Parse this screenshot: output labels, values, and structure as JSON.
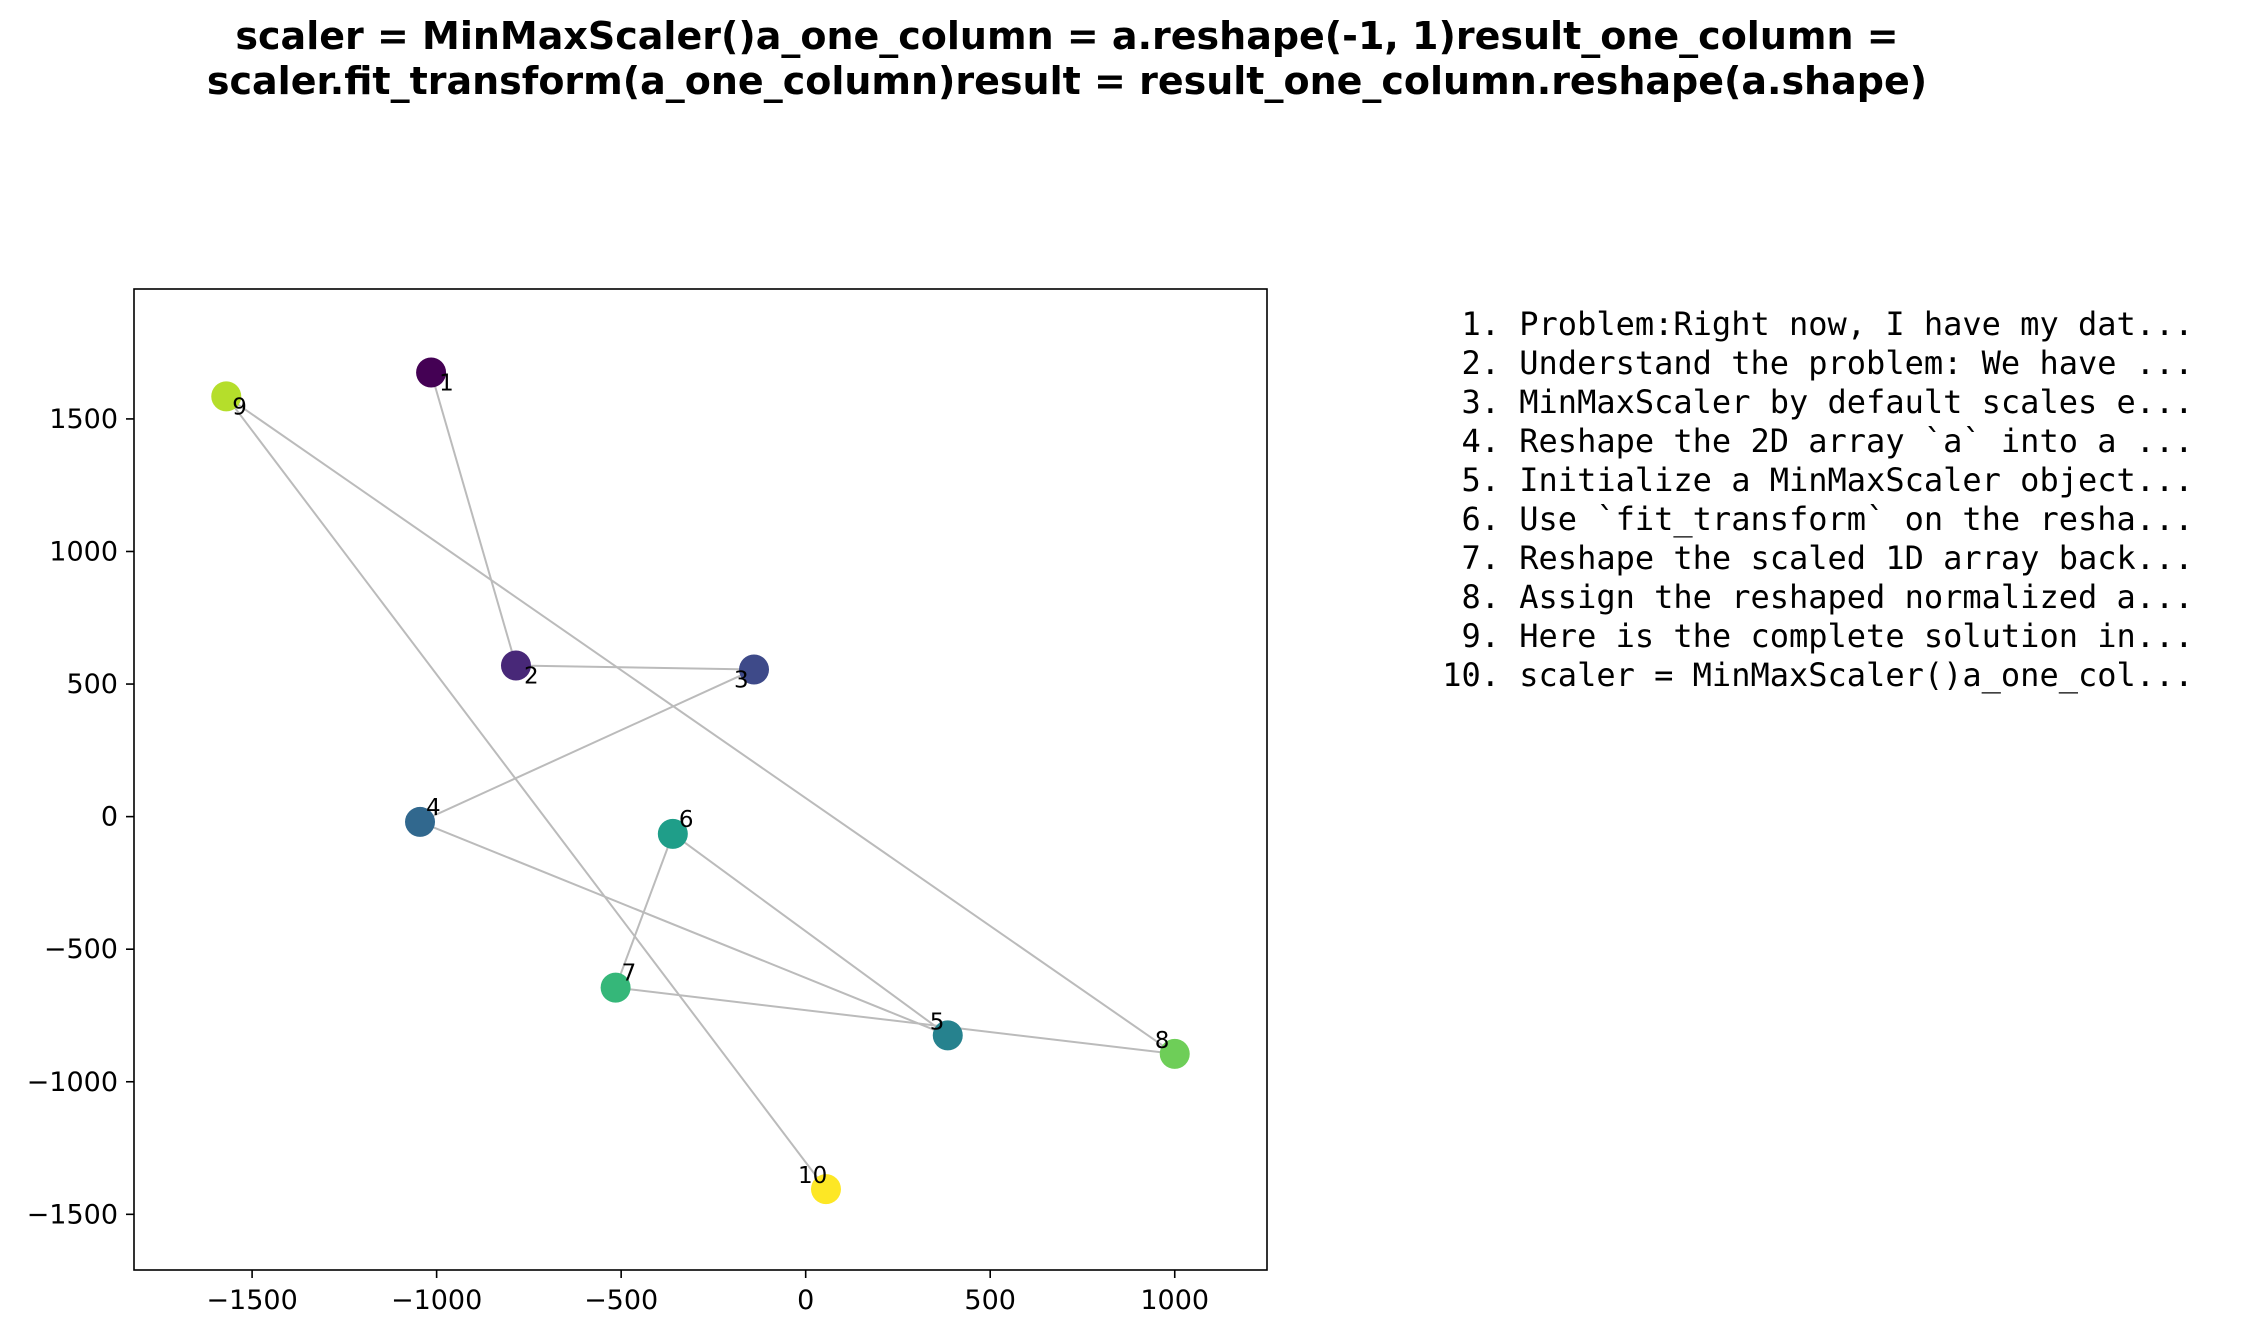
{
  "chart_data": {
    "type": "scatter",
    "title": "scaler = MinMaxScaler()a_one_column = a.reshape(-1, 1)result_one_column =\nscaler.fit_transform(a_one_column)result = result_one_column.reshape(a.shape)",
    "xlabel": "",
    "ylabel": "",
    "xlim": [
      -1820,
      1250
    ],
    "ylim": [
      -1710,
      1990
    ],
    "xticks": [
      -1500,
      -1000,
      -500,
      0,
      500,
      1000
    ],
    "yticks": [
      -1500,
      -1000,
      -500,
      0,
      500,
      1000,
      1500
    ],
    "xtick_labels": [
      "−1500",
      "−1000",
      "−500",
      "0",
      "500",
      "1000"
    ],
    "ytick_labels": [
      "−1500",
      "−1000",
      "−500",
      "0",
      "500",
      "1000",
      "1500"
    ],
    "grid": false,
    "points": [
      {
        "label": "1",
        "x": -1015,
        "y": 1675,
        "color": "#440154"
      },
      {
        "label": "2",
        "x": -785,
        "y": 570,
        "color": "#482878"
      },
      {
        "label": "3",
        "x": -140,
        "y": 555,
        "color": "#3e4a89"
      },
      {
        "label": "4",
        "x": -1045,
        "y": -20,
        "color": "#31688e"
      },
      {
        "label": "5",
        "x": 385,
        "y": -825,
        "color": "#26828e"
      },
      {
        "label": "6",
        "x": -360,
        "y": -65,
        "color": "#1f9e89"
      },
      {
        "label": "7",
        "x": -515,
        "y": -645,
        "color": "#35b779"
      },
      {
        "label": "8",
        "x": 1000,
        "y": -895,
        "color": "#6ece58"
      },
      {
        "label": "9",
        "x": -1570,
        "y": 1585,
        "color": "#b5de2b"
      },
      {
        "label": "10",
        "x": 55,
        "y": -1405,
        "color": "#fde725"
      }
    ],
    "path_color": "#bbbbbb",
    "steps": [
      "1. Problem:Right now, I have my dat...",
      "2. Understand the problem: We have ...",
      "3. MinMaxScaler by default scales e...",
      "4. Reshape the 2D array `a` into a ...",
      "5. Initialize a MinMaxScaler object...",
      "6. Use `fit_transform` on the resha...",
      "7. Reshape the scaled 1D array back...",
      "8. Assign the reshaped normalized a...",
      "9. Here is the complete solution in...",
      "10. scaler = MinMaxScaler()a_one_col..."
    ]
  }
}
